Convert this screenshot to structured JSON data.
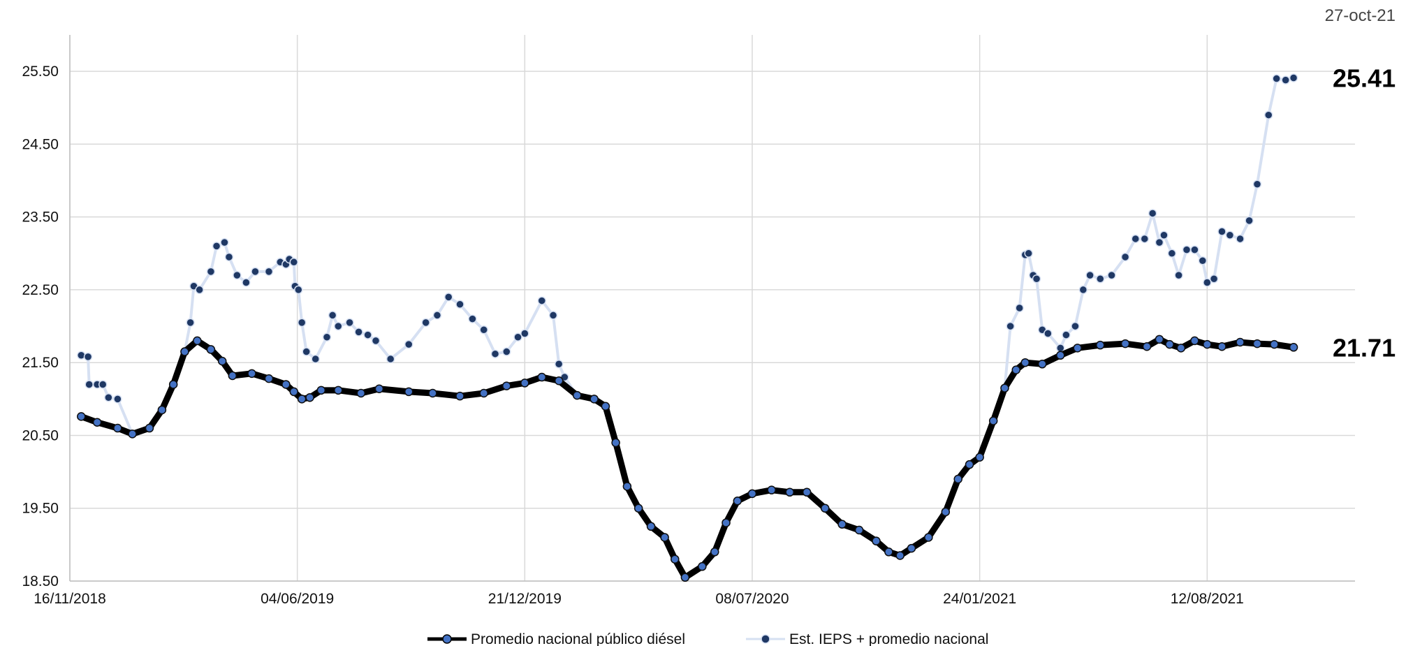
{
  "date_stamp": "27-oct-21",
  "chart_data": {
    "type": "line",
    "title": "",
    "xlabel": "",
    "ylabel": "",
    "ylim": [
      18.5,
      26.0
    ],
    "yticks": [
      "18.50",
      "19.50",
      "20.50",
      "21.50",
      "22.50",
      "23.50",
      "24.50",
      "25.50"
    ],
    "xlim": [
      "2018-11-16",
      "2021-12-20"
    ],
    "xticks": [
      "16/11/2018",
      "04/06/2019",
      "21/12/2019",
      "08/07/2020",
      "24/01/2021",
      "12/08/2021"
    ],
    "grid": true,
    "legend": "bottom-center",
    "end_labels": [
      "25.41",
      "21.71"
    ],
    "series": [
      {
        "name": "Promedio nacional público diésel",
        "color": "#000000",
        "marker_color": "#4472c4",
        "x": [
          "2018-11-26",
          "2018-12-10",
          "2018-12-28",
          "2019-01-10",
          "2019-01-25",
          "2019-02-05",
          "2019-02-15",
          "2019-02-25",
          "2019-03-08",
          "2019-03-20",
          "2019-03-30",
          "2019-04-08",
          "2019-04-25",
          "2019-05-10",
          "2019-05-25",
          "2019-06-01",
          "2019-06-08",
          "2019-06-15",
          "2019-06-25",
          "2019-07-10",
          "2019-07-30",
          "2019-08-15",
          "2019-09-10",
          "2019-10-01",
          "2019-10-25",
          "2019-11-15",
          "2019-12-05",
          "2019-12-21",
          "2020-01-05",
          "2020-01-20",
          "2020-02-05",
          "2020-02-20",
          "2020-03-01",
          "2020-03-10",
          "2020-03-20",
          "2020-03-30",
          "2020-04-10",
          "2020-04-22",
          "2020-05-01",
          "2020-05-10",
          "2020-05-25",
          "2020-06-05",
          "2020-06-15",
          "2020-06-25",
          "2020-07-08",
          "2020-07-25",
          "2020-08-10",
          "2020-08-25",
          "2020-09-10",
          "2020-09-25",
          "2020-10-10",
          "2020-10-25",
          "2020-11-05",
          "2020-11-15",
          "2020-11-25",
          "2020-12-10",
          "2020-12-25",
          "2021-01-05",
          "2021-01-15",
          "2021-01-24",
          "2021-02-05",
          "2021-02-15",
          "2021-02-25",
          "2021-03-05",
          "2021-03-20",
          "2021-04-05",
          "2021-04-20",
          "2021-05-10",
          "2021-06-01",
          "2021-06-20",
          "2021-07-01",
          "2021-07-10",
          "2021-07-20",
          "2021-08-01",
          "2021-08-12",
          "2021-08-25",
          "2021-09-10",
          "2021-09-25",
          "2021-10-10",
          "2021-10-27"
        ],
        "values": [
          20.76,
          20.68,
          20.6,
          20.52,
          20.6,
          20.85,
          21.2,
          21.65,
          21.8,
          21.68,
          21.52,
          21.32,
          21.35,
          21.28,
          21.2,
          21.1,
          21.0,
          21.02,
          21.12,
          21.12,
          21.08,
          21.14,
          21.1,
          21.08,
          21.04,
          21.08,
          21.18,
          21.22,
          21.3,
          21.25,
          21.05,
          21.0,
          20.9,
          20.4,
          19.8,
          19.5,
          19.25,
          19.1,
          18.8,
          18.55,
          18.7,
          18.9,
          19.3,
          19.6,
          19.7,
          19.75,
          19.72,
          19.72,
          19.5,
          19.28,
          19.2,
          19.05,
          18.9,
          18.85,
          18.95,
          19.1,
          19.45,
          19.9,
          20.1,
          20.2,
          20.7,
          21.15,
          21.4,
          21.5,
          21.48,
          21.6,
          21.7,
          21.74,
          21.76,
          21.72,
          21.82,
          21.75,
          21.7,
          21.8,
          21.75,
          21.72,
          21.78,
          21.76,
          21.75,
          21.71
        ]
      },
      {
        "name": "Est. IEPS + promedio nacional",
        "color": "#d6e0f2",
        "marker_color": "#1f3864",
        "x": [
          "2018-11-26",
          "2018-12-02",
          "2018-12-03",
          "2018-12-10",
          "2018-12-15",
          "2018-12-20",
          "2018-12-28",
          "2019-01-10",
          "2019-01-25",
          "2019-02-05",
          "2019-02-15",
          "2019-02-25",
          "2019-03-02",
          "2019-03-05",
          "2019-03-10",
          "2019-03-20",
          "2019-03-25",
          "2019-04-01",
          "2019-04-05",
          "2019-04-12",
          "2019-04-20",
          "2019-04-28",
          "2019-05-10",
          "2019-05-20",
          "2019-05-25",
          "2019-05-28",
          "2019-06-01",
          "2019-06-02",
          "2019-06-05",
          "2019-06-08",
          "2019-06-12",
          "2019-06-20",
          "2019-06-30",
          "2019-07-05",
          "2019-07-10",
          "2019-07-20",
          "2019-07-28",
          "2019-08-05",
          "2019-08-12",
          "2019-08-25",
          "2019-09-10",
          "2019-09-25",
          "2019-10-05",
          "2019-10-15",
          "2019-10-25",
          "2019-11-05",
          "2019-11-15",
          "2019-11-25",
          "2019-12-05",
          "2019-12-15",
          "2019-12-21",
          "2020-01-05",
          "2020-01-15",
          "2020-01-20",
          "2020-01-25",
          "2020-02-05",
          "2020-02-20",
          "2020-03-01",
          "2020-03-10",
          "2020-03-20",
          "2020-03-30",
          "2020-04-10",
          "2020-04-22",
          "2020-05-01",
          "2020-05-10",
          "2020-05-25",
          "2020-06-05",
          "2020-06-15",
          "2020-06-25",
          "2020-07-08",
          "2020-07-25",
          "2020-08-10",
          "2020-08-25",
          "2020-09-10",
          "2020-09-25",
          "2020-10-10",
          "2020-10-25",
          "2020-11-05",
          "2020-11-15",
          "2020-11-25",
          "2020-12-10",
          "2020-12-25",
          "2021-01-05",
          "2021-01-15",
          "2021-01-24",
          "2021-02-05",
          "2021-02-15",
          "2021-02-20",
          "2021-02-28",
          "2021-03-05",
          "2021-03-08",
          "2021-03-12",
          "2021-03-15",
          "2021-03-20",
          "2021-03-25",
          "2021-04-05",
          "2021-04-10",
          "2021-04-18",
          "2021-04-25",
          "2021-05-01",
          "2021-05-10",
          "2021-05-20",
          "2021-06-01",
          "2021-06-10",
          "2021-06-18",
          "2021-06-25",
          "2021-07-01",
          "2021-07-05",
          "2021-07-12",
          "2021-07-18",
          "2021-07-25",
          "2021-08-01",
          "2021-08-08",
          "2021-08-12",
          "2021-08-18",
          "2021-08-25",
          "2021-09-01",
          "2021-09-10",
          "2021-09-18",
          "2021-09-25",
          "2021-10-05",
          "2021-10-12",
          "2021-10-20",
          "2021-10-27"
        ],
        "values": [
          21.6,
          21.58,
          21.2,
          21.2,
          21.2,
          21.02,
          21.0,
          20.52,
          20.6,
          20.85,
          21.2,
          21.65,
          22.05,
          22.55,
          22.5,
          22.75,
          23.1,
          23.15,
          22.95,
          22.7,
          22.6,
          22.75,
          22.75,
          22.88,
          22.85,
          22.92,
          22.88,
          22.55,
          22.5,
          22.05,
          21.65,
          21.55,
          21.85,
          22.15,
          22.0,
          22.05,
          21.92,
          21.88,
          21.8,
          21.55,
          21.75,
          22.05,
          22.15,
          22.4,
          22.3,
          22.1,
          21.95,
          21.62,
          21.65,
          21.85,
          21.9,
          22.35,
          22.15,
          21.48,
          21.3,
          21.05,
          21.0,
          20.9,
          20.4,
          19.8,
          19.5,
          19.25,
          19.1,
          18.8,
          18.55,
          18.7,
          18.9,
          19.3,
          19.6,
          19.7,
          19.75,
          19.72,
          19.72,
          19.5,
          19.28,
          19.2,
          19.05,
          18.9,
          18.85,
          18.95,
          19.1,
          19.45,
          19.9,
          20.1,
          20.2,
          20.7,
          21.15,
          22.0,
          22.25,
          22.98,
          23.0,
          22.7,
          22.65,
          21.95,
          21.9,
          21.7,
          21.88,
          22.0,
          22.5,
          22.7,
          22.65,
          22.7,
          22.95,
          23.2,
          23.2,
          23.55,
          23.15,
          23.25,
          23.0,
          22.7,
          23.05,
          23.05,
          22.9,
          22.6,
          22.65,
          23.3,
          23.25,
          23.2,
          23.45,
          23.95,
          24.9,
          25.4,
          25.38,
          25.41
        ]
      }
    ]
  }
}
